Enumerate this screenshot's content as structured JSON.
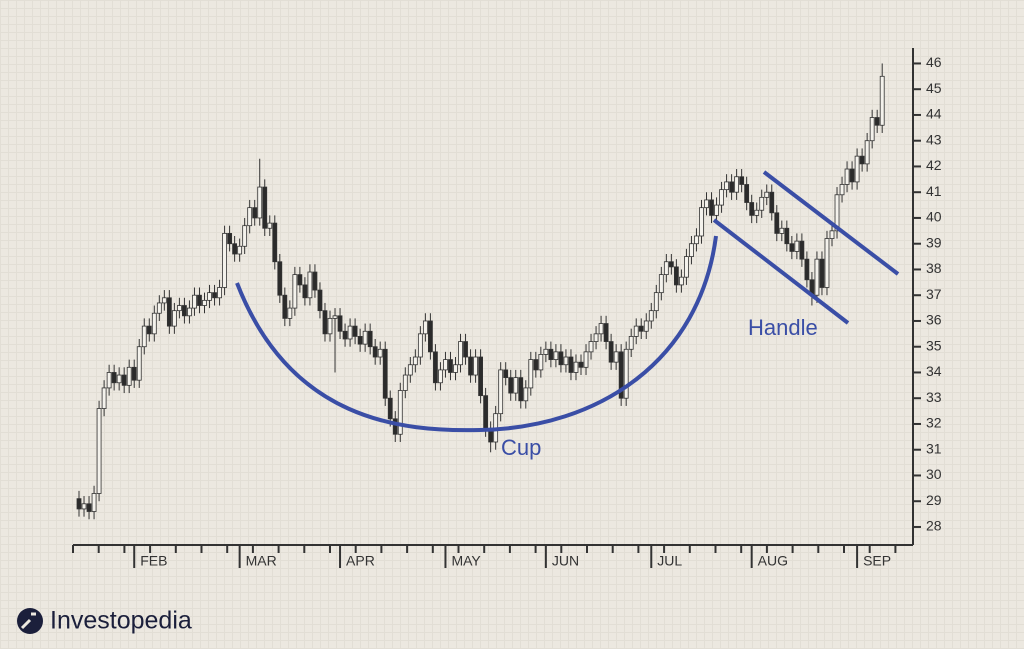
{
  "chart_data": {
    "type": "candlestick",
    "up_color": "#f4f2ec",
    "down_color": "#2b2b2b",
    "annotation_color": "#3a4ea6",
    "annotations": [
      "Cup",
      "Handle"
    ],
    "categories": [
      null,
      null,
      null,
      null,
      null,
      null,
      null,
      null,
      null,
      null,
      null,
      "FEB",
      null,
      null,
      null,
      null,
      null,
      null,
      null,
      null,
      null,
      null,
      null,
      null,
      null,
      null,
      null,
      null,
      null,
      null,
      null,
      null,
      "MAR",
      null,
      null,
      null,
      null,
      null,
      null,
      null,
      null,
      null,
      null,
      null,
      null,
      null,
      null,
      null,
      null,
      null,
      null,
      null,
      "APR",
      null,
      null,
      null,
      null,
      null,
      null,
      null,
      null,
      null,
      null,
      null,
      null,
      null,
      null,
      null,
      null,
      null,
      null,
      null,
      null,
      "MAY",
      null,
      null,
      null,
      null,
      null,
      null,
      null,
      null,
      null,
      null,
      null,
      null,
      null,
      null,
      null,
      null,
      null,
      null,
      null,
      "JUN",
      null,
      null,
      null,
      null,
      null,
      null,
      null,
      null,
      null,
      null,
      null,
      null,
      null,
      null,
      null,
      null,
      null,
      null,
      null,
      null,
      "JUL",
      null,
      null,
      null,
      null,
      null,
      null,
      null,
      null,
      null,
      null,
      null,
      null,
      null,
      null,
      null,
      null,
      null,
      null,
      null,
      "AUG",
      null,
      null,
      null,
      null,
      null,
      null,
      null,
      null,
      null,
      null,
      null,
      null,
      null,
      null,
      null,
      null,
      null,
      null,
      null,
      null,
      "SEP",
      null,
      null,
      null,
      null,
      null
    ],
    "candles": [
      [
        29.1,
        29.4,
        28.4,
        28.7
      ],
      [
        28.7,
        29.2,
        28.4,
        28.9
      ],
      [
        28.9,
        29.2,
        28.3,
        28.6
      ],
      [
        28.6,
        29.6,
        28.3,
        29.3
      ],
      [
        29.3,
        32.9,
        29.0,
        32.6
      ],
      [
        32.6,
        33.7,
        32.3,
        33.4
      ],
      [
        33.4,
        34.3,
        33.1,
        34.0
      ],
      [
        34.0,
        34.3,
        33.3,
        33.6
      ],
      [
        33.6,
        34.2,
        33.3,
        33.9
      ],
      [
        33.9,
        34.2,
        33.2,
        33.5
      ],
      [
        33.5,
        34.5,
        33.2,
        34.2
      ],
      [
        34.2,
        34.5,
        33.4,
        33.7
      ],
      [
        33.7,
        35.3,
        33.4,
        35.0
      ],
      [
        35.0,
        36.1,
        34.7,
        35.8
      ],
      [
        35.8,
        36.1,
        35.2,
        35.5
      ],
      [
        35.5,
        36.6,
        35.2,
        36.3
      ],
      [
        36.3,
        37.0,
        36.0,
        36.7
      ],
      [
        36.7,
        37.2,
        36.4,
        36.9
      ],
      [
        36.9,
        37.2,
        35.5,
        35.8
      ],
      [
        35.8,
        36.7,
        35.5,
        36.4
      ],
      [
        36.4,
        36.9,
        36.1,
        36.6
      ],
      [
        36.6,
        36.9,
        35.9,
        36.2
      ],
      [
        36.2,
        36.8,
        35.9,
        36.5
      ],
      [
        36.5,
        37.3,
        36.2,
        37.0
      ],
      [
        37.0,
        37.3,
        36.3,
        36.6
      ],
      [
        36.6,
        37.1,
        36.3,
        36.8
      ],
      [
        36.8,
        37.4,
        36.5,
        37.1
      ],
      [
        37.1,
        37.4,
        36.6,
        36.9
      ],
      [
        36.9,
        37.6,
        36.6,
        37.3
      ],
      [
        37.3,
        39.7,
        37.0,
        39.4
      ],
      [
        39.4,
        39.7,
        38.7,
        39.0
      ],
      [
        39.0,
        39.3,
        38.3,
        38.6
      ],
      [
        38.6,
        39.2,
        38.3,
        38.9
      ],
      [
        38.9,
        40.0,
        38.6,
        39.7
      ],
      [
        39.7,
        40.7,
        39.4,
        40.4
      ],
      [
        40.4,
        40.7,
        39.7,
        40.0
      ],
      [
        40.0,
        42.3,
        39.7,
        41.2
      ],
      [
        41.2,
        41.5,
        39.3,
        39.6
      ],
      [
        39.6,
        40.1,
        39.3,
        39.8
      ],
      [
        39.8,
        40.1,
        38.0,
        38.3
      ],
      [
        38.3,
        38.6,
        36.7,
        37.0
      ],
      [
        37.0,
        37.3,
        35.8,
        36.1
      ],
      [
        36.1,
        36.8,
        35.8,
        36.5
      ],
      [
        36.5,
        38.1,
        36.2,
        37.8
      ],
      [
        37.8,
        38.1,
        37.1,
        37.4
      ],
      [
        37.4,
        37.7,
        36.6,
        36.9
      ],
      [
        36.9,
        38.2,
        36.6,
        37.9
      ],
      [
        37.9,
        38.2,
        36.9,
        37.2
      ],
      [
        37.2,
        37.5,
        36.1,
        36.4
      ],
      [
        36.4,
        36.7,
        35.2,
        35.5
      ],
      [
        35.5,
        36.4,
        35.2,
        36.1
      ],
      [
        36.1,
        36.5,
        34.0,
        36.2
      ],
      [
        36.2,
        36.5,
        35.3,
        35.6
      ],
      [
        35.6,
        35.9,
        35.0,
        35.3
      ],
      [
        35.3,
        36.1,
        35.0,
        35.8
      ],
      [
        35.8,
        36.1,
        35.1,
        35.4
      ],
      [
        35.4,
        35.7,
        34.8,
        35.1
      ],
      [
        35.1,
        35.9,
        34.8,
        35.6
      ],
      [
        35.6,
        35.9,
        34.7,
        35.0
      ],
      [
        35.0,
        35.3,
        34.3,
        34.6
      ],
      [
        34.6,
        35.2,
        34.3,
        34.9
      ],
      [
        34.9,
        35.2,
        32.7,
        33.0
      ],
      [
        33.0,
        33.3,
        31.9,
        32.2
      ],
      [
        32.2,
        32.5,
        31.3,
        31.6
      ],
      [
        31.6,
        33.6,
        31.3,
        33.3
      ],
      [
        33.3,
        34.2,
        33.0,
        33.9
      ],
      [
        33.9,
        34.6,
        33.6,
        34.3
      ],
      [
        34.3,
        34.9,
        34.0,
        34.6
      ],
      [
        34.6,
        35.8,
        34.3,
        35.5
      ],
      [
        35.5,
        36.3,
        35.2,
        36.0
      ],
      [
        36.0,
        36.3,
        34.5,
        34.8
      ],
      [
        34.8,
        35.1,
        33.3,
        33.6
      ],
      [
        33.6,
        34.4,
        33.3,
        34.1
      ],
      [
        34.1,
        34.8,
        33.8,
        34.5
      ],
      [
        34.5,
        34.8,
        33.7,
        34.0
      ],
      [
        34.0,
        34.6,
        33.7,
        34.3
      ],
      [
        34.3,
        35.5,
        34.0,
        35.2
      ],
      [
        35.2,
        35.5,
        34.3,
        34.6
      ],
      [
        34.6,
        34.9,
        33.6,
        33.9
      ],
      [
        33.9,
        34.9,
        33.6,
        34.6
      ],
      [
        34.6,
        34.9,
        32.8,
        33.1
      ],
      [
        33.1,
        33.4,
        31.5,
        31.8
      ],
      [
        31.8,
        32.1,
        30.9,
        31.3
      ],
      [
        31.3,
        32.7,
        31.0,
        32.4
      ],
      [
        32.4,
        34.4,
        32.1,
        34.1
      ],
      [
        34.1,
        34.4,
        33.5,
        33.8
      ],
      [
        33.8,
        34.1,
        32.9,
        33.2
      ],
      [
        33.2,
        34.1,
        32.9,
        33.8
      ],
      [
        33.8,
        34.1,
        32.6,
        32.9
      ],
      [
        32.9,
        33.7,
        32.6,
        33.4
      ],
      [
        33.4,
        34.8,
        33.1,
        34.5
      ],
      [
        34.5,
        34.8,
        33.8,
        34.1
      ],
      [
        34.1,
        35.0,
        33.8,
        34.7
      ],
      [
        34.7,
        35.2,
        34.4,
        34.9
      ],
      [
        34.9,
        35.2,
        34.2,
        34.5
      ],
      [
        34.5,
        35.1,
        34.2,
        34.8
      ],
      [
        34.8,
        35.1,
        34.0,
        34.3
      ],
      [
        34.3,
        34.9,
        34.0,
        34.6
      ],
      [
        34.6,
        34.9,
        33.7,
        34.0
      ],
      [
        34.0,
        34.7,
        33.7,
        34.4
      ],
      [
        34.4,
        34.7,
        33.9,
        34.2
      ],
      [
        34.2,
        35.1,
        33.9,
        34.8
      ],
      [
        34.8,
        35.5,
        34.5,
        35.2
      ],
      [
        35.2,
        35.8,
        34.9,
        35.5
      ],
      [
        35.5,
        36.2,
        35.2,
        35.9
      ],
      [
        35.9,
        36.2,
        34.9,
        35.2
      ],
      [
        35.2,
        35.5,
        34.1,
        34.4
      ],
      [
        34.4,
        35.1,
        34.1,
        34.8
      ],
      [
        34.8,
        35.1,
        32.7,
        33.0
      ],
      [
        33.0,
        35.2,
        32.7,
        34.9
      ],
      [
        34.9,
        35.7,
        34.6,
        35.4
      ],
      [
        35.4,
        36.1,
        35.1,
        35.8
      ],
      [
        35.8,
        36.1,
        35.3,
        35.6
      ],
      [
        35.6,
        36.3,
        35.3,
        36.0
      ],
      [
        36.0,
        36.7,
        35.7,
        36.4
      ],
      [
        36.4,
        37.4,
        36.1,
        37.1
      ],
      [
        37.1,
        38.1,
        36.8,
        37.8
      ],
      [
        37.8,
        38.6,
        37.5,
        38.3
      ],
      [
        38.3,
        38.6,
        37.8,
        38.1
      ],
      [
        38.1,
        38.4,
        37.1,
        37.4
      ],
      [
        37.4,
        38.0,
        37.1,
        37.7
      ],
      [
        37.7,
        38.8,
        37.4,
        38.5
      ],
      [
        38.5,
        39.3,
        38.2,
        39.0
      ],
      [
        39.0,
        39.6,
        38.7,
        39.3
      ],
      [
        39.3,
        40.7,
        39.0,
        40.4
      ],
      [
        40.4,
        41.0,
        40.1,
        40.7
      ],
      [
        40.7,
        41.0,
        39.8,
        40.1
      ],
      [
        40.1,
        40.8,
        39.8,
        40.5
      ],
      [
        40.5,
        41.4,
        40.2,
        41.1
      ],
      [
        41.1,
        41.7,
        40.8,
        41.4
      ],
      [
        41.4,
        41.7,
        40.7,
        41.0
      ],
      [
        41.0,
        41.9,
        40.7,
        41.6
      ],
      [
        41.6,
        41.9,
        41.0,
        41.3
      ],
      [
        41.3,
        41.6,
        40.3,
        40.6
      ],
      [
        40.6,
        40.9,
        39.8,
        40.1
      ],
      [
        40.1,
        40.6,
        39.8,
        40.3
      ],
      [
        40.3,
        41.1,
        40.0,
        40.8
      ],
      [
        40.8,
        41.3,
        40.5,
        41.0
      ],
      [
        41.0,
        41.3,
        39.9,
        40.2
      ],
      [
        40.2,
        40.5,
        39.1,
        39.4
      ],
      [
        39.4,
        39.9,
        39.1,
        39.6
      ],
      [
        39.6,
        39.9,
        38.7,
        39.0
      ],
      [
        39.0,
        39.3,
        38.4,
        38.7
      ],
      [
        38.7,
        39.4,
        38.4,
        39.1
      ],
      [
        39.1,
        39.4,
        38.1,
        38.4
      ],
      [
        38.4,
        38.7,
        37.3,
        37.6
      ],
      [
        37.6,
        37.9,
        36.6,
        37.0
      ],
      [
        37.0,
        38.7,
        36.7,
        38.4
      ],
      [
        38.4,
        38.7,
        37.0,
        37.3
      ],
      [
        37.3,
        39.5,
        37.0,
        39.2
      ],
      [
        39.2,
        39.8,
        38.9,
        39.5
      ],
      [
        39.5,
        41.2,
        39.2,
        40.9
      ],
      [
        40.9,
        41.6,
        40.6,
        41.3
      ],
      [
        41.3,
        42.2,
        41.0,
        41.9
      ],
      [
        41.9,
        42.2,
        41.1,
        41.4
      ],
      [
        41.4,
        42.7,
        41.1,
        42.4
      ],
      [
        42.4,
        42.7,
        41.8,
        42.1
      ],
      [
        42.1,
        43.3,
        41.8,
        43.0
      ],
      [
        43.0,
        44.2,
        42.7,
        43.9
      ],
      [
        43.9,
        44.2,
        43.3,
        43.6
      ],
      [
        43.6,
        46.0,
        43.3,
        45.5
      ]
    ],
    "ylim": [
      27.3,
      46.6
    ],
    "yticks": [
      28,
      29,
      30,
      31,
      32,
      33,
      34,
      35,
      36,
      37,
      38,
      39,
      40,
      41,
      42,
      43,
      44,
      45,
      46
    ]
  },
  "brand": "Investopedia"
}
